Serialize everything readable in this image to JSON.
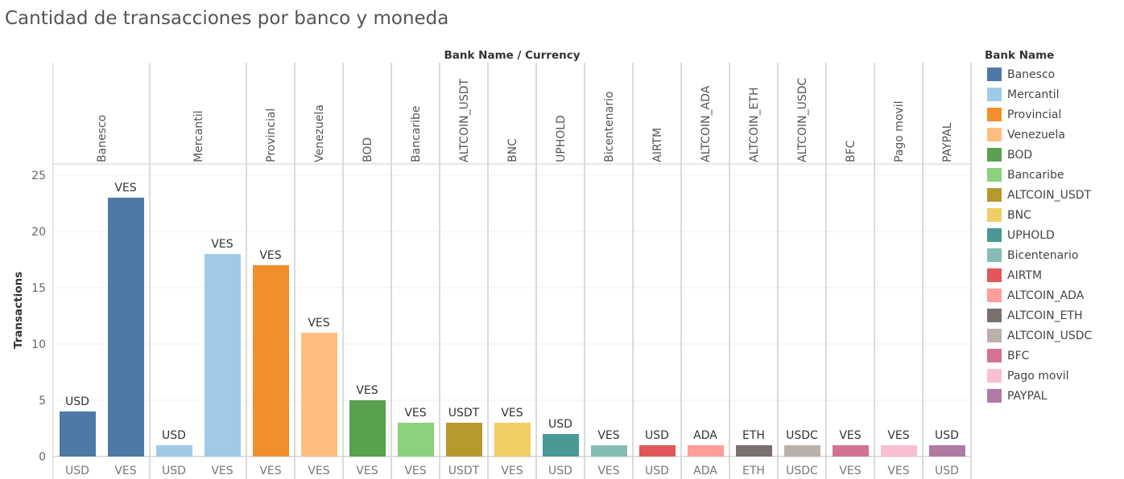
{
  "title": "Cantidad de transacciones por banco y moneda",
  "legend": {
    "title": "Bank Name",
    "items": [
      {
        "label": "Banesco",
        "color": "#4e79a7"
      },
      {
        "label": "Mercantil",
        "color": "#a0cbe8"
      },
      {
        "label": "Provincial",
        "color": "#f28e2b"
      },
      {
        "label": "Venezuela",
        "color": "#ffbe7d"
      },
      {
        "label": "BOD",
        "color": "#59a14f"
      },
      {
        "label": "Bancaribe",
        "color": "#8cd17d"
      },
      {
        "label": "ALTCOIN_USDT",
        "color": "#b6992d"
      },
      {
        "label": "BNC",
        "color": "#f1ce63"
      },
      {
        "label": "UPHOLD",
        "color": "#499894"
      },
      {
        "label": "Bicentenario",
        "color": "#86bcb6"
      },
      {
        "label": "AIRTM",
        "color": "#e15759"
      },
      {
        "label": "ALTCOIN_ADA",
        "color": "#ff9d9a"
      },
      {
        "label": "ALTCOIN_ETH",
        "color": "#79706e"
      },
      {
        "label": "ALTCOIN_USDC",
        "color": "#bab0ac"
      },
      {
        "label": "BFC",
        "color": "#d37295"
      },
      {
        "label": "Pago movil",
        "color": "#fabfd2"
      },
      {
        "label": "PAYPAL",
        "color": "#b07aa1"
      }
    ]
  },
  "chart_data": {
    "type": "bar",
    "title": "Cantidad de transacciones por banco y moneda",
    "header_label": "Bank Name  /  Currency",
    "ylabel": "Transactions",
    "ylim": [
      0,
      26
    ],
    "yticks": [
      0,
      5,
      10,
      15,
      20,
      25
    ],
    "groups": [
      {
        "bank": "Banesco",
        "color": "#4e79a7",
        "bars": [
          {
            "currency": "USD",
            "value": 4
          },
          {
            "currency": "VES",
            "value": 23
          }
        ]
      },
      {
        "bank": "Mercantil",
        "color": "#a0cbe8",
        "bars": [
          {
            "currency": "USD",
            "value": 1
          },
          {
            "currency": "VES",
            "value": 18
          }
        ]
      },
      {
        "bank": "Provincial",
        "color": "#f28e2b",
        "bars": [
          {
            "currency": "VES",
            "value": 17
          }
        ]
      },
      {
        "bank": "Venezuela",
        "color": "#ffbe7d",
        "bars": [
          {
            "currency": "VES",
            "value": 11
          }
        ]
      },
      {
        "bank": "BOD",
        "color": "#59a14f",
        "bars": [
          {
            "currency": "VES",
            "value": 5
          }
        ]
      },
      {
        "bank": "Bancaribe",
        "color": "#8cd17d",
        "bars": [
          {
            "currency": "VES",
            "value": 3
          }
        ]
      },
      {
        "bank": "ALTCOIN_USDT",
        "color": "#b6992d",
        "bars": [
          {
            "currency": "USDT",
            "value": 3
          }
        ]
      },
      {
        "bank": "BNC",
        "color": "#f1ce63",
        "bars": [
          {
            "currency": "VES",
            "value": 3
          }
        ]
      },
      {
        "bank": "UPHOLD",
        "color": "#499894",
        "bars": [
          {
            "currency": "USD",
            "value": 2
          }
        ]
      },
      {
        "bank": "Bicentenario",
        "color": "#86bcb6",
        "bars": [
          {
            "currency": "VES",
            "value": 1
          }
        ]
      },
      {
        "bank": "AIRTM",
        "color": "#e15759",
        "bars": [
          {
            "currency": "USD",
            "value": 1
          }
        ]
      },
      {
        "bank": "ALTCOIN_ADA",
        "color": "#ff9d9a",
        "bars": [
          {
            "currency": "ADA",
            "value": 1
          }
        ]
      },
      {
        "bank": "ALTCOIN_ETH",
        "color": "#79706e",
        "bars": [
          {
            "currency": "ETH",
            "value": 1
          }
        ]
      },
      {
        "bank": "ALTCOIN_USDC",
        "color": "#bab0ac",
        "bars": [
          {
            "currency": "USDC",
            "value": 1
          }
        ]
      },
      {
        "bank": "BFC",
        "color": "#d37295",
        "bars": [
          {
            "currency": "VES",
            "value": 1
          }
        ]
      },
      {
        "bank": "Pago movil",
        "color": "#fabfd2",
        "bars": [
          {
            "currency": "VES",
            "value": 1
          }
        ]
      },
      {
        "bank": "PAYPAL",
        "color": "#b07aa1",
        "bars": [
          {
            "currency": "USD",
            "value": 1
          }
        ]
      }
    ]
  }
}
